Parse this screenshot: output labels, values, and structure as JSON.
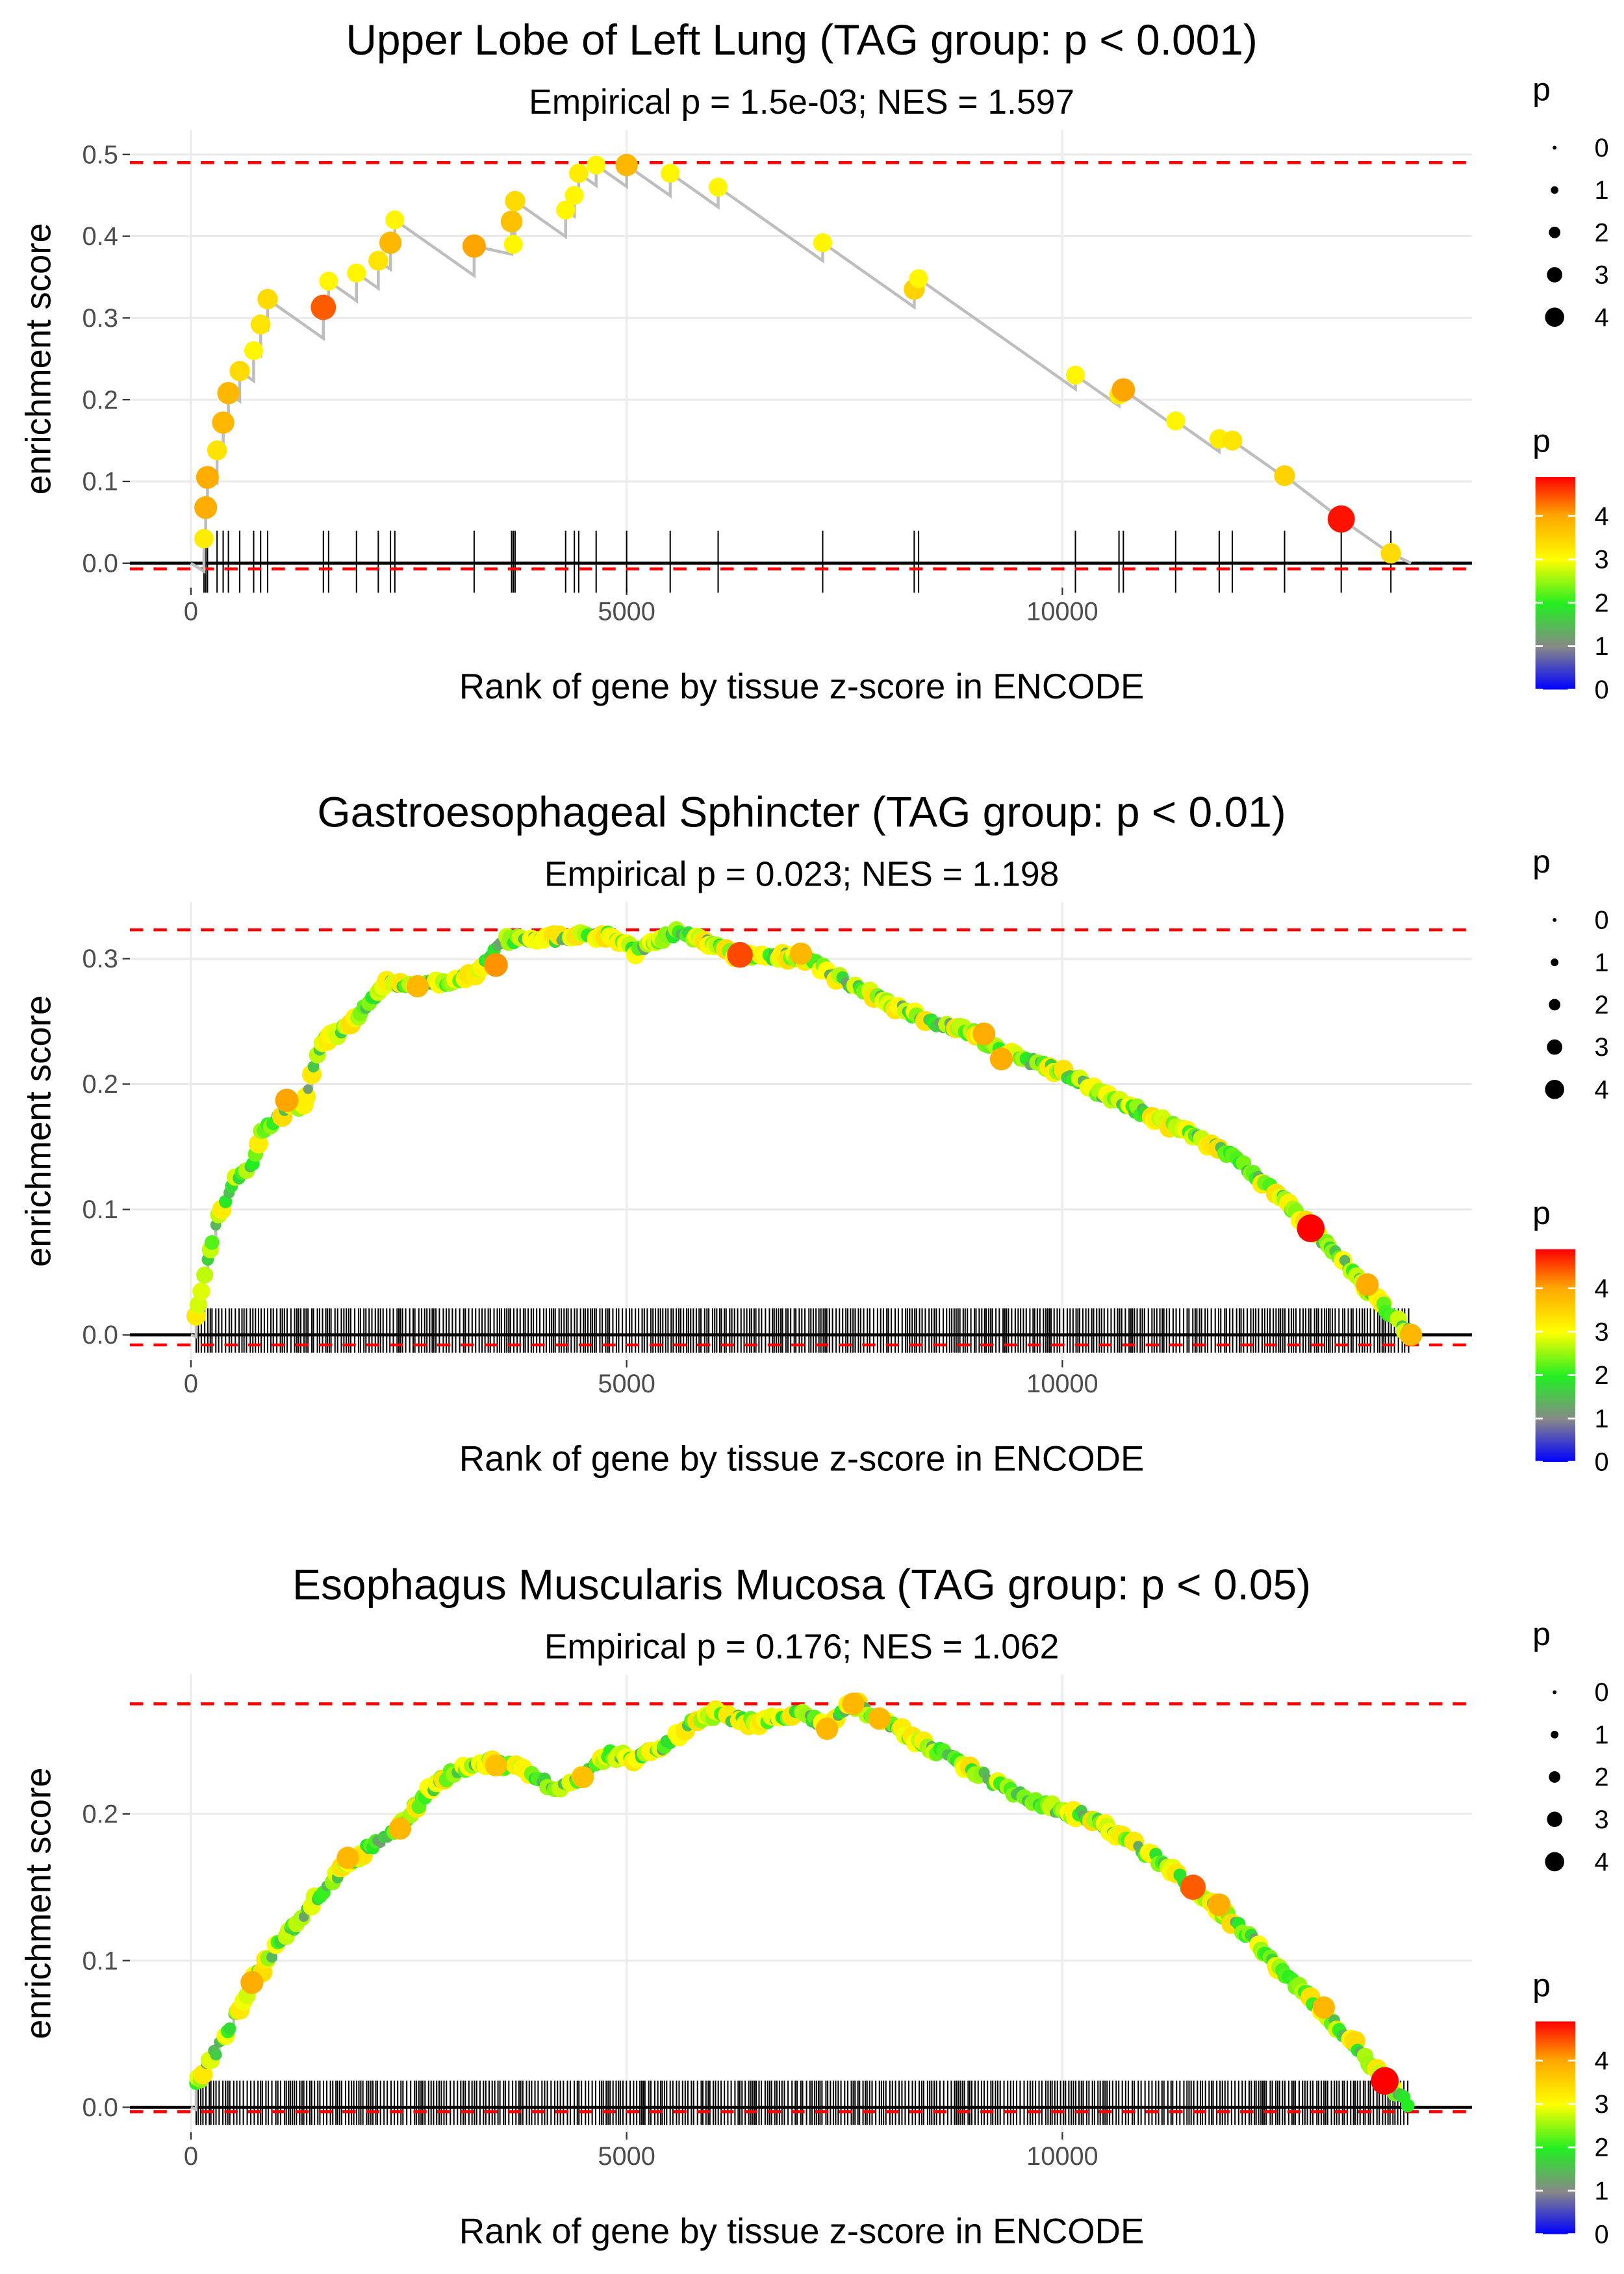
{
  "colors": {
    "low": "#0000ff",
    "mid1": "#888888",
    "mid2": "#22ee22",
    "mid3": "#ffff00",
    "mid4": "#ffa500",
    "high": "#ff0000",
    "line": "#bebebe",
    "dash": "#ff0000",
    "grid": "#ebebeb"
  },
  "chart_data": [
    {
      "type": "line",
      "title": "Upper Lobe of Left Lung (TAG group: p < 0.001)",
      "subtitle": "Empirical p = 1.5e-03; NES = 1.597",
      "xlabel": "Rank of gene by tissue z-score in ENCODE",
      "ylabel": "enrichment score",
      "xlim": [
        -700,
        14700
      ],
      "ylim": [
        -0.03,
        0.53
      ],
      "xticks": [
        0,
        5000,
        10000
      ],
      "xtick_labels": [
        "0",
        "5000",
        "10000"
      ],
      "yticks": [
        0.0,
        0.1,
        0.2,
        0.3,
        0.4,
        0.5
      ],
      "ytick_labels": [
        "0.0",
        "0.1",
        "0.2",
        "0.3",
        "0.4",
        "0.5"
      ],
      "max_es": 0.49,
      "min_es": -0.007,
      "mode": "sparse",
      "points": [
        [
          150,
          0.03,
          3.2
        ],
        [
          170,
          0.068,
          3.9
        ],
        [
          190,
          0.105,
          3.9
        ],
        [
          300,
          0.138,
          3.3
        ],
        [
          370,
          0.172,
          3.8
        ],
        [
          430,
          0.208,
          3.8
        ],
        [
          560,
          0.235,
          3.4
        ],
        [
          720,
          0.26,
          3.1
        ],
        [
          800,
          0.292,
          3.3
        ],
        [
          880,
          0.323,
          3.4
        ],
        [
          1520,
          0.313,
          4.4
        ],
        [
          1580,
          0.345,
          3.1
        ],
        [
          1900,
          0.355,
          3.1
        ],
        [
          2150,
          0.37,
          3.3
        ],
        [
          2290,
          0.392,
          3.8
        ],
        [
          2340,
          0.42,
          3.1
        ],
        [
          3250,
          0.388,
          4.0
        ],
        [
          3680,
          0.418,
          3.7
        ],
        [
          3700,
          0.39,
          3.1
        ],
        [
          3720,
          0.443,
          3.4
        ],
        [
          4300,
          0.432,
          3.1
        ],
        [
          4400,
          0.45,
          3.1
        ],
        [
          4450,
          0.477,
          3.2
        ],
        [
          4650,
          0.487,
          3.1
        ],
        [
          5000,
          0.487,
          3.8
        ],
        [
          5500,
          0.477,
          3.1
        ],
        [
          6050,
          0.46,
          3.1
        ],
        [
          7250,
          0.392,
          3.1
        ],
        [
          8300,
          0.335,
          3.5
        ],
        [
          8350,
          0.348,
          3.1
        ],
        [
          10150,
          0.23,
          3.1
        ],
        [
          10650,
          0.206,
          3.2
        ],
        [
          10700,
          0.212,
          4.0
        ],
        [
          11300,
          0.174,
          3.1
        ],
        [
          11800,
          0.152,
          3.2
        ],
        [
          11950,
          0.15,
          3.3
        ],
        [
          12550,
          0.107,
          3.5
        ],
        [
          13200,
          0.054,
          4.8
        ],
        [
          13770,
          0.012,
          3.4
        ]
      ],
      "legend_size": {
        "title": "p",
        "labels": [
          "0",
          "1",
          "2",
          "3",
          "4"
        ]
      },
      "legend_color": {
        "title": "p",
        "labels": [
          "0",
          "1",
          "2",
          "3",
          "4"
        ]
      }
    },
    {
      "type": "line",
      "title": "Gastroesophageal Sphincter (TAG group: p < 0.01)",
      "subtitle": "Empirical p = 0.023; NES = 1.198",
      "xlabel": "Rank of gene by tissue z-score in ENCODE",
      "ylabel": "enrichment score",
      "xlim": [
        -700,
        14700
      ],
      "ylim": [
        -0.02,
        0.345
      ],
      "xticks": [
        0,
        5000,
        10000
      ],
      "xtick_labels": [
        "0",
        "5000",
        "10000"
      ],
      "yticks": [
        0.0,
        0.1,
        0.2,
        0.3
      ],
      "ytick_labels": [
        "0.0",
        "0.1",
        "0.2",
        "0.3"
      ],
      "max_es": 0.323,
      "min_es": -0.008,
      "mode": "dense",
      "curve": [
        [
          0,
          0.0
        ],
        [
          100,
          0.03
        ],
        [
          300,
          0.09
        ],
        [
          500,
          0.125
        ],
        [
          700,
          0.135
        ],
        [
          800,
          0.16
        ],
        [
          1100,
          0.18
        ],
        [
          1300,
          0.185
        ],
        [
          1500,
          0.235
        ],
        [
          1700,
          0.24
        ],
        [
          2000,
          0.26
        ],
        [
          2200,
          0.28
        ],
        [
          2600,
          0.28
        ],
        [
          3000,
          0.28
        ],
        [
          3300,
          0.29
        ],
        [
          3600,
          0.315
        ],
        [
          4000,
          0.315
        ],
        [
          4500,
          0.318
        ],
        [
          4800,
          0.32
        ],
        [
          5100,
          0.305
        ],
        [
          5600,
          0.322
        ],
        [
          6000,
          0.31
        ],
        [
          6300,
          0.302
        ],
        [
          7000,
          0.302
        ],
        [
          7600,
          0.278
        ],
        [
          8000,
          0.265
        ],
        [
          8500,
          0.25
        ],
        [
          9000,
          0.24
        ],
        [
          9300,
          0.225
        ],
        [
          10000,
          0.21
        ],
        [
          10500,
          0.19
        ],
        [
          11000,
          0.175
        ],
        [
          11500,
          0.16
        ],
        [
          12000,
          0.14
        ],
        [
          12500,
          0.11
        ],
        [
          12850,
          0.085
        ],
        [
          13200,
          0.06
        ],
        [
          13500,
          0.035
        ],
        [
          13800,
          0.015
        ],
        [
          14000,
          0.0
        ]
      ],
      "highlights": [
        [
          1100,
          0.187,
          4.0
        ],
        [
          2600,
          0.278,
          3.8
        ],
        [
          3500,
          0.295,
          4.1
        ],
        [
          6300,
          0.303,
          4.5
        ],
        [
          7000,
          0.304,
          3.8
        ],
        [
          9100,
          0.24,
          3.9
        ],
        [
          9300,
          0.22,
          3.9
        ],
        [
          12850,
          0.085,
          4.9
        ],
        [
          13500,
          0.04,
          3.9
        ],
        [
          14000,
          0.0,
          3.8
        ]
      ],
      "legend_size": {
        "title": "p",
        "labels": [
          "0",
          "1",
          "2",
          "3",
          "4"
        ]
      },
      "legend_color": {
        "title": "p",
        "labels": [
          "0",
          "1",
          "2",
          "3",
          "4"
        ]
      }
    },
    {
      "type": "line",
      "title": "Esophagus Muscularis Mucosa (TAG group: p < 0.05)",
      "subtitle": "Empirical p = 0.176; NES = 1.062",
      "xlabel": "Rank of gene by tissue z-score in ENCODE",
      "ylabel": "enrichment score",
      "xlim": [
        -700,
        14700
      ],
      "ylim": [
        -0.017,
        0.295
      ],
      "xticks": [
        0,
        5000,
        10000
      ],
      "xtick_labels": [
        "0",
        "5000",
        "10000"
      ],
      "yticks": [
        0.0,
        0.1,
        0.2
      ],
      "ytick_labels": [
        "0.0",
        "0.1",
        "0.2"
      ],
      "max_es": 0.275,
      "min_es": -0.003,
      "mode": "dense",
      "curve": [
        [
          0,
          0.01
        ],
        [
          200,
          0.03
        ],
        [
          400,
          0.05
        ],
        [
          700,
          0.085
        ],
        [
          1000,
          0.11
        ],
        [
          1400,
          0.14
        ],
        [
          1700,
          0.16
        ],
        [
          2000,
          0.175
        ],
        [
          2400,
          0.19
        ],
        [
          2700,
          0.215
        ],
        [
          3000,
          0.228
        ],
        [
          3400,
          0.235
        ],
        [
          3700,
          0.232
        ],
        [
          4000,
          0.222
        ],
        [
          4300,
          0.218
        ],
        [
          4500,
          0.225
        ],
        [
          4800,
          0.24
        ],
        [
          5100,
          0.238
        ],
        [
          5400,
          0.245
        ],
        [
          5700,
          0.26
        ],
        [
          6000,
          0.268
        ],
        [
          6500,
          0.262
        ],
        [
          7000,
          0.268
        ],
        [
          7300,
          0.26
        ],
        [
          7600,
          0.275
        ],
        [
          8000,
          0.262
        ],
        [
          8400,
          0.248
        ],
        [
          8800,
          0.235
        ],
        [
          9300,
          0.22
        ],
        [
          9800,
          0.205
        ],
        [
          10300,
          0.198
        ],
        [
          10800,
          0.18
        ],
        [
          11200,
          0.165
        ],
        [
          11600,
          0.142
        ],
        [
          12000,
          0.125
        ],
        [
          12500,
          0.095
        ],
        [
          13000,
          0.065
        ],
        [
          13400,
          0.04
        ],
        [
          13700,
          0.018
        ],
        [
          14000,
          0.0
        ]
      ],
      "highlights": [
        [
          700,
          0.085,
          3.9
        ],
        [
          1800,
          0.17,
          3.8
        ],
        [
          2400,
          0.19,
          3.8
        ],
        [
          3500,
          0.233,
          3.7
        ],
        [
          4500,
          0.225,
          3.7
        ],
        [
          7300,
          0.258,
          3.8
        ],
        [
          7600,
          0.275,
          3.8
        ],
        [
          7900,
          0.265,
          3.8
        ],
        [
          11500,
          0.15,
          4.4
        ],
        [
          11800,
          0.138,
          3.9
        ],
        [
          13000,
          0.068,
          3.8
        ],
        [
          13700,
          0.018,
          4.9
        ]
      ],
      "legend_size": {
        "title": "p",
        "labels": [
          "0",
          "1",
          "2",
          "3",
          "4"
        ]
      },
      "legend_color": {
        "title": "p",
        "labels": [
          "0",
          "1",
          "2",
          "3",
          "4"
        ]
      }
    }
  ]
}
